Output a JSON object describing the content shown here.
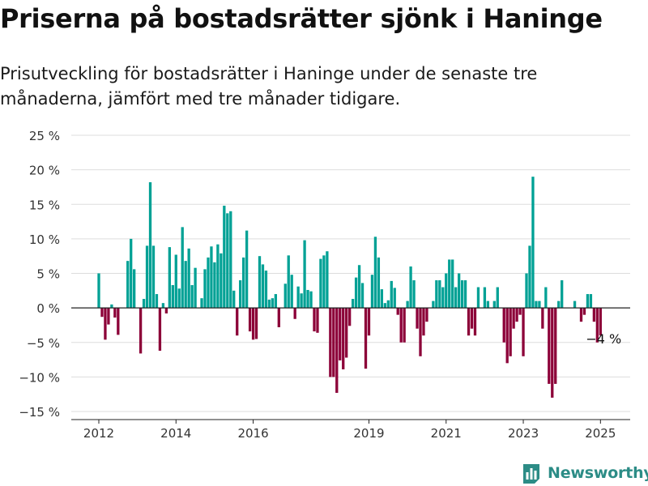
{
  "title": "Priserna på bostadsrätter sjönk i Haninge",
  "subtitle": "Prisutveckling för bostadsrätter i Haninge under de senaste tre månaderna, jämfört med tre månader tidigare.",
  "brand": {
    "name": "Newsworthy",
    "icon": "bar-chart-logo-icon"
  },
  "colors": {
    "positive": "#00a195",
    "negative": "#8c0038",
    "grid": "#dddddd",
    "zero_line": "#222222",
    "brand": "#2c8c86"
  },
  "chart_data": {
    "type": "bar",
    "title": "",
    "xlabel": "",
    "ylabel": "",
    "y_unit": "%",
    "ylim": [
      -15,
      25
    ],
    "yticks": [
      25,
      20,
      15,
      10,
      5,
      0,
      -5,
      -10,
      -15
    ],
    "ytick_labels": [
      "25 %",
      "20 %",
      "15 %",
      "10 %",
      "5 %",
      "0 %",
      "−5 %",
      "−10 %",
      "−15 %"
    ],
    "xticks": [
      2012,
      2014,
      2016,
      2019,
      2021,
      2023,
      2025
    ],
    "x_range": [
      2011.1,
      2025.5
    ],
    "grid": true,
    "last_value_label": "−4 %",
    "series": [
      {
        "start": "2012-01",
        "frequency": "monthly",
        "values": [
          5,
          -1.3,
          -4.6,
          -2.4,
          0.5,
          -1.4,
          -3.9,
          null,
          null,
          6.8,
          10,
          5.6,
          null,
          -6.6,
          1.3,
          9,
          18.2,
          9,
          2,
          -6.2,
          0.7,
          -0.8,
          8.8,
          3.3,
          7.7,
          2.8,
          11.7,
          6.8,
          8.6,
          3.3,
          5.8,
          null,
          1.4,
          5.6,
          7.3,
          8.9,
          6.6,
          9.2,
          7.9,
          14.8,
          13.7,
          14,
          2.5,
          -4,
          4,
          7.3,
          11.2,
          -3.4,
          -4.6,
          -4.5,
          7.5,
          6.3,
          5.4,
          1.2,
          1.4,
          2,
          -2.8,
          null,
          3.5,
          7.6,
          4.8,
          -1.6,
          3.1,
          2.1,
          9.8,
          2.6,
          2.4,
          -3.4,
          -3.6,
          7.1,
          7.6,
          8.2,
          -10,
          -10,
          -12.3,
          -7.6,
          -8.9,
          -7.2,
          -2.6,
          1.3,
          4.4,
          6.2,
          3.6,
          -8.8,
          -4,
          4.8,
          10.3,
          7.3,
          2.7,
          0.7,
          1.1,
          3.9,
          2.9,
          -1,
          -5,
          -5,
          1,
          6,
          4,
          -3,
          -7,
          -4,
          -2,
          null,
          1,
          4,
          4,
          3,
          5,
          7,
          7,
          3,
          5,
          4,
          4,
          -4,
          -3,
          -4,
          3,
          null,
          3,
          1,
          null,
          1,
          3,
          null,
          -5,
          -8,
          -7,
          -3,
          -2,
          -1,
          -7,
          5,
          9,
          19,
          1,
          1,
          -3,
          3,
          -11,
          -13,
          -11,
          1,
          4,
          null,
          null,
          null,
          1,
          null,
          -2,
          -1,
          2,
          2,
          -2,
          -5,
          -4
        ]
      }
    ]
  }
}
